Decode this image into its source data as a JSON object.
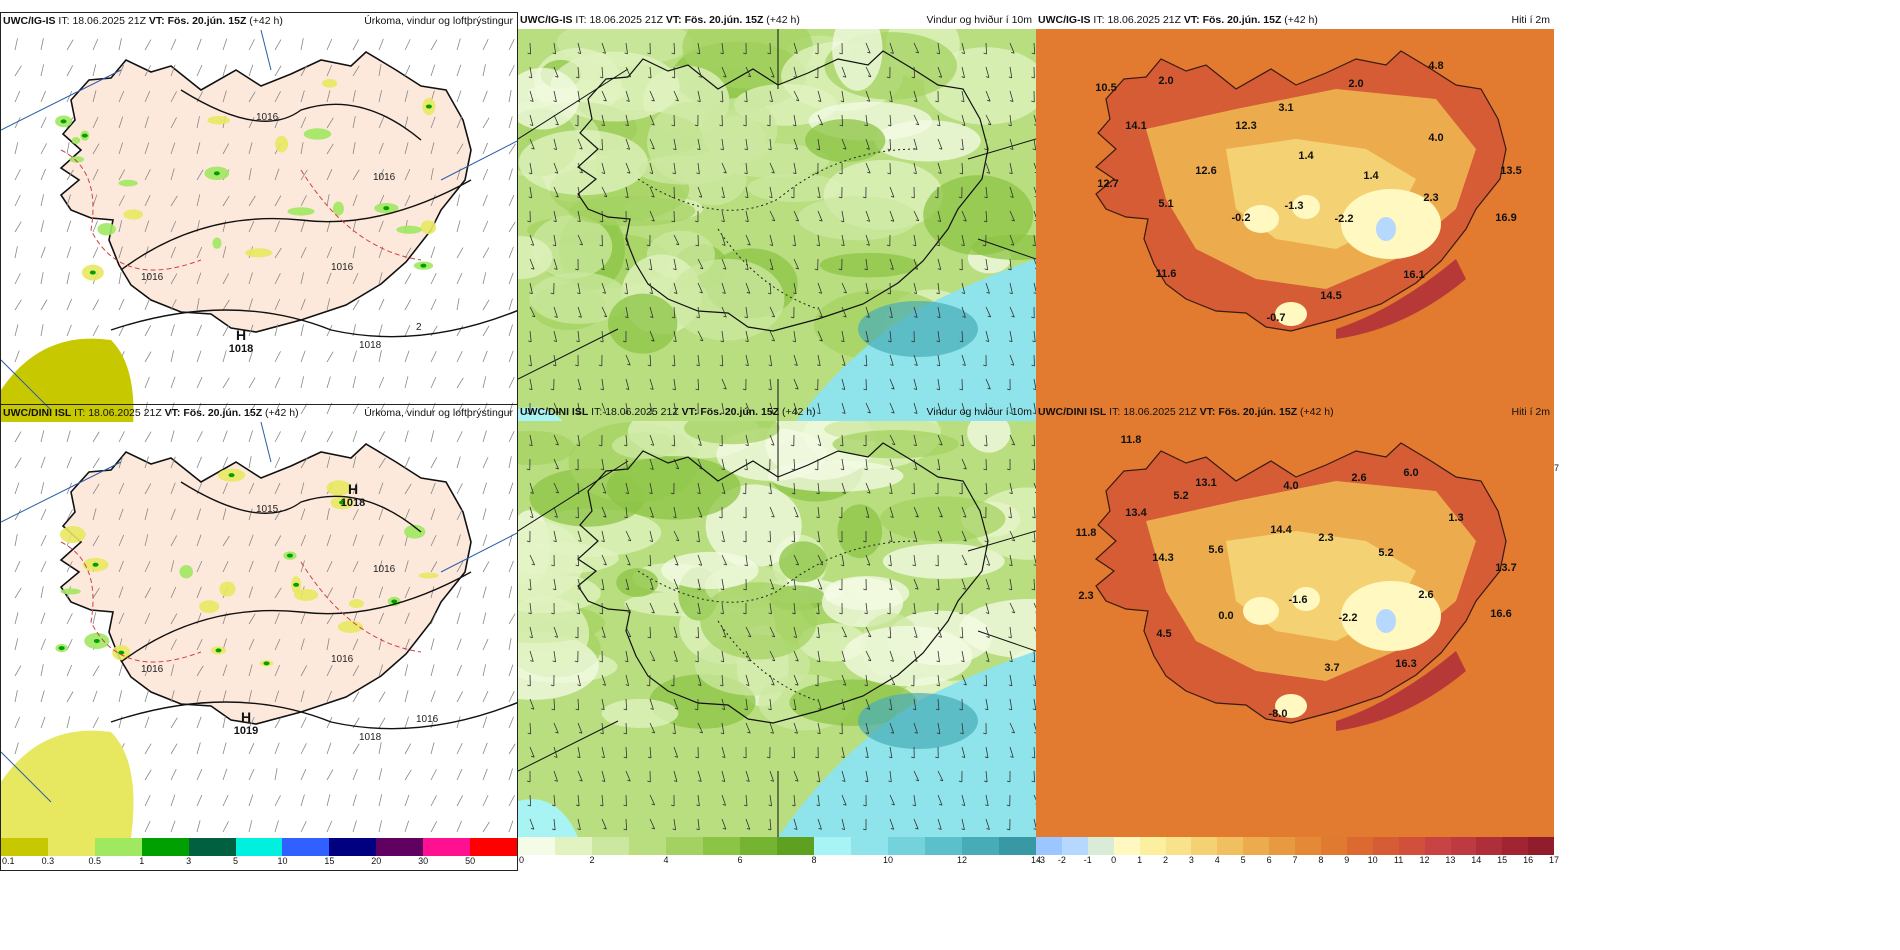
{
  "rows": [
    {
      "model": "UWC/IG-IS",
      "it_label": "IT:",
      "it_value": "18.06.2025 21Z",
      "vt_label": "VT:",
      "vt_value": "Fös. 20.jún. 15Z",
      "lead": "(+42 h)",
      "precip": {
        "title": "Úrkoma, vindur og loftþrýstingur",
        "pressure_labels": [
          "1016",
          "1016",
          "1016",
          "1016",
          "1018",
          "2"
        ],
        "high_label": "H",
        "high_value": "1018"
      },
      "wind": {
        "title": "Vindur og hviður í 10m"
      },
      "temp": {
        "title": "Hiti í 2m",
        "labels": [
          "10.5",
          "2.0",
          "2.0",
          "4.8",
          "14.1",
          "12.3",
          "3.1",
          "1.4",
          "4.0",
          "12.6",
          "1.4",
          "13.5",
          "12.7",
          "5.1",
          "-0.2",
          "-1.3",
          "-2.2",
          "2.3",
          "16.9",
          "11.6",
          "16.1",
          "14.5",
          "-0.7"
        ]
      }
    },
    {
      "model": "UWC/DINI ISL",
      "it_label": "IT:",
      "it_value": "18.06.2025 21Z",
      "vt_label": "VT:",
      "vt_value": "Fös. 20.jún. 15Z",
      "lead": "(+42 h)",
      "precip": {
        "title": "Úrkoma, vindur og loftþrýstingur",
        "pressure_labels": [
          "1015",
          "1016",
          "1016",
          "1016",
          "1018",
          "1016"
        ],
        "high_label": "H",
        "high_value": "1018",
        "high2_label": "H",
        "high2_value": "1019"
      },
      "wind": {
        "title": "Vindur og hviður í 10m"
      },
      "temp": {
        "title": "Hiti í 2m",
        "labels": [
          "11.8",
          "13.1",
          "4.0",
          "2.6",
          "6.0",
          "5.2",
          "13.4",
          "11.8",
          "5.6",
          "14.4",
          "2.3",
          "1.3",
          "14.3",
          "5.2",
          "13.7",
          "2.3",
          "0.0",
          "-1.6",
          "-2.2",
          "2.6",
          "16.6",
          "4.5",
          "3.7",
          "16.3",
          "-8.0"
        ]
      }
    }
  ],
  "precip_scale": {
    "ticks": [
      "0.1",
      "0.3",
      "0.5",
      "1",
      "3",
      "5",
      "10",
      "15",
      "20",
      "30",
      "50"
    ],
    "colors": [
      "#c8c800",
      "#e8e860",
      "#a0e860",
      "#00a000",
      "#006040",
      "#00f0e0",
      "#3060ff",
      "#000080",
      "#600060",
      "#ff1090",
      "#ff0000"
    ]
  },
  "wind_scale": {
    "ticks": [
      "0",
      "2",
      "4",
      "6",
      "8",
      "10",
      "12",
      "14"
    ],
    "colors": [
      "#f4fbe6",
      "#e2f3c2",
      "#cce8a0",
      "#b8de80",
      "#a4d262",
      "#8cc446",
      "#74b430",
      "#5ea020",
      "#a8f4f4",
      "#8ee4ea",
      "#74d2dc",
      "#5cc0cc",
      "#48acb8",
      "#3898a4"
    ]
  },
  "temp_scale": {
    "ticks": [
      "-3",
      "-2",
      "-1",
      "0",
      "1",
      "2",
      "3",
      "4",
      "5",
      "6",
      "7",
      "8",
      "9",
      "10",
      "11",
      "12",
      "13",
      "14",
      "15",
      "16",
      "17"
    ],
    "colors": [
      "#9cc6ff",
      "#b6d8ff",
      "#d8ecd8",
      "#fff8c0",
      "#fcefa0",
      "#f8e28a",
      "#f4d274",
      "#f0c060",
      "#ecac4e",
      "#e89a40",
      "#e48a36",
      "#e07a30",
      "#dc6a30",
      "#d65c36",
      "#d0503c",
      "#c84444",
      "#bc3a40",
      "#ae2e3a",
      "#a02432",
      "#901c2c"
    ]
  }
}
